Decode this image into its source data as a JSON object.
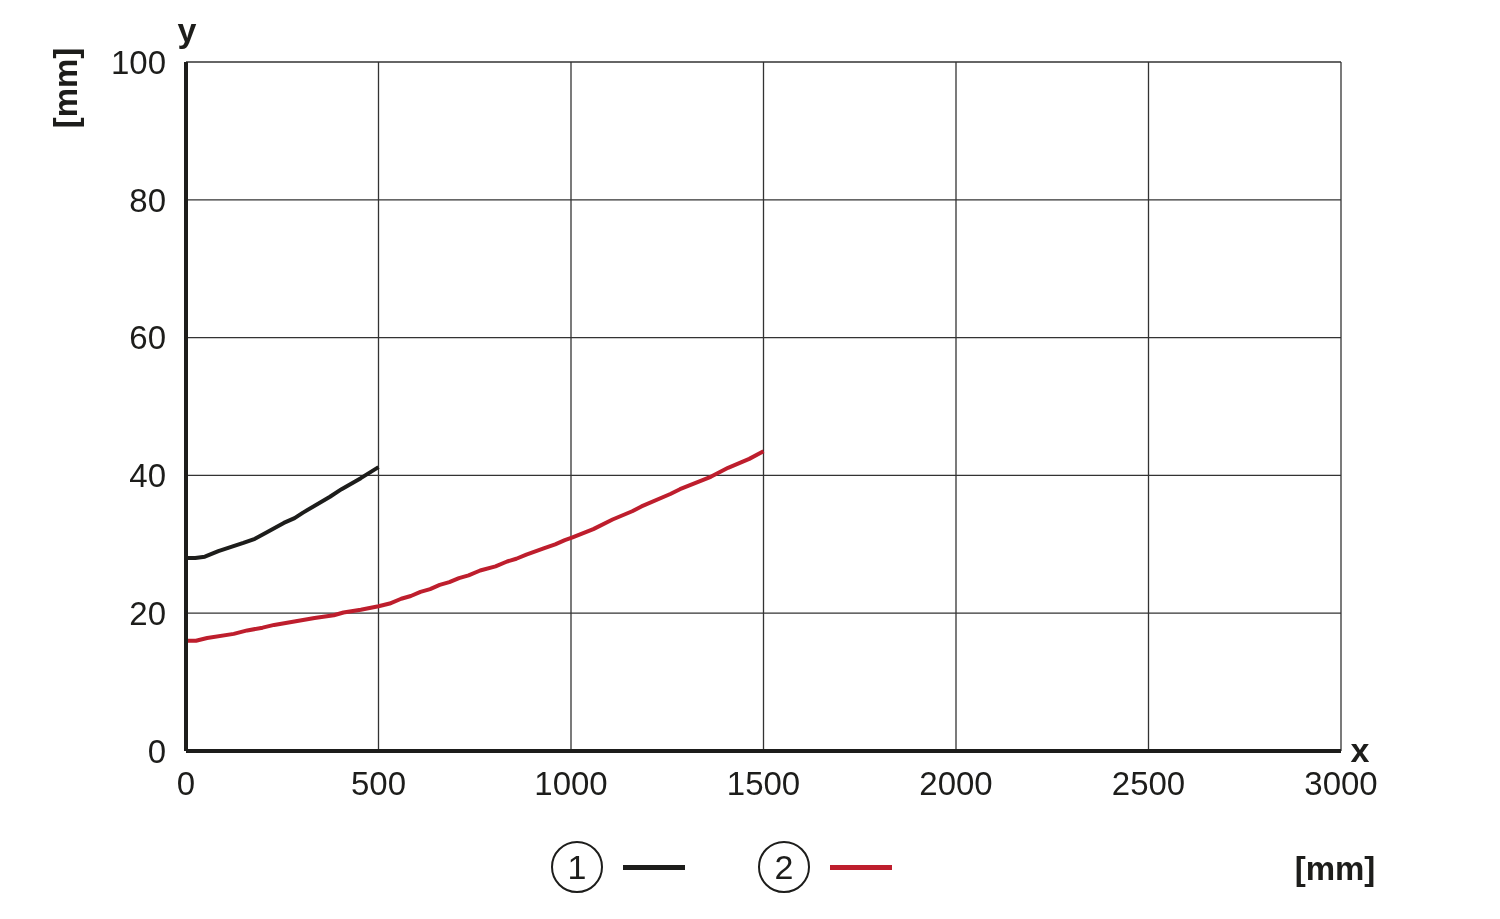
{
  "chart_data": {
    "type": "line",
    "xlabel": "x",
    "ylabel": "y",
    "annotations": [
      "[mm]",
      "[mm]"
    ],
    "xlim": [
      0,
      3000
    ],
    "ylim": [
      0,
      100
    ],
    "xticks": [
      0,
      500,
      1000,
      1500,
      2000,
      2500,
      3000
    ],
    "yticks": [
      0,
      20,
      40,
      60,
      80,
      100
    ],
    "grid": true,
    "legend": "bottom",
    "line_style": "solid",
    "series": [
      {
        "name": "1",
        "color": "#1d1d1b",
        "x": [
          0,
          24,
          49,
          84,
          149,
          179,
          209,
          254,
          282,
          304,
          374,
          404,
          454,
          500
        ],
        "values": [
          28,
          28,
          28.2,
          29,
          30.2,
          30.8,
          31.7,
          33.1,
          33.8,
          34.6,
          36.9,
          38,
          39.6,
          41.2
        ]
      },
      {
        "name": "2",
        "color": "#be1e2d",
        "x": [
          0,
          26,
          55,
          124,
          159,
          199,
          229,
          304,
          334,
          384,
          409,
          454,
          500,
          529,
          559,
          584,
          609,
          634,
          659,
          684,
          709,
          734,
          764,
          804,
          834,
          858,
          884,
          929,
          959,
          984,
          1004,
          1058,
          1108,
          1159,
          1183,
          1258,
          1283,
          1363,
          1408,
          1463,
          1500
        ],
        "values": [
          16,
          16,
          16.4,
          17,
          17.5,
          17.9,
          18.3,
          19,
          19.3,
          19.7,
          20.1,
          20.5,
          21,
          21.4,
          22.1,
          22.5,
          23.1,
          23.5,
          24.1,
          24.5,
          25.1,
          25.5,
          26.2,
          26.8,
          27.5,
          27.9,
          28.5,
          29.4,
          30,
          30.6,
          31,
          32.2,
          33.6,
          34.8,
          35.5,
          37.3,
          38,
          39.8,
          41.1,
          42.4,
          43.5
        ]
      }
    ]
  }
}
